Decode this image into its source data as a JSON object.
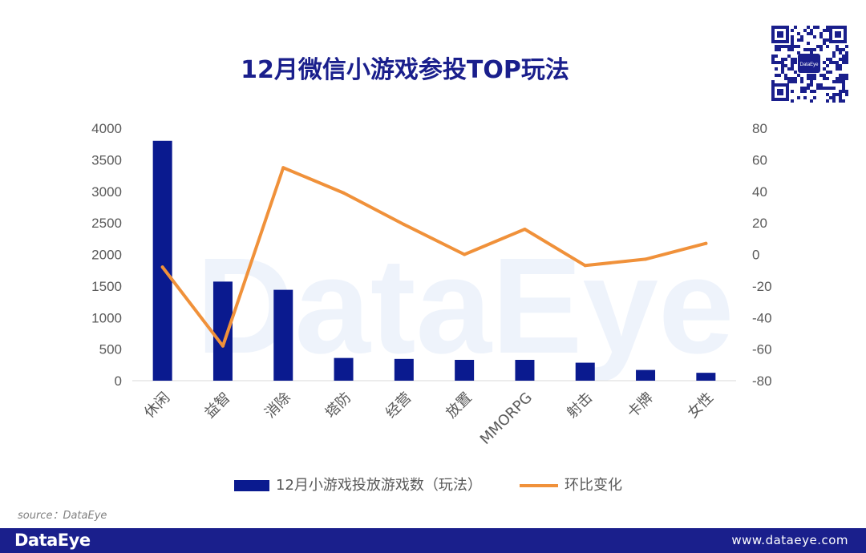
{
  "header": {
    "title": "12月微信小游戏参投TOP玩法"
  },
  "qr": {
    "center_label": "DataEye"
  },
  "watermark": "DataEye",
  "chart_data": {
    "type": "bar",
    "categories": [
      "休闲",
      "益智",
      "消除",
      "塔防",
      "经营",
      "放置",
      "MMORPG",
      "射击",
      "卡牌",
      "女性"
    ],
    "series": [
      {
        "name": "12月小游戏投放游戏数（玩法）",
        "type": "bar",
        "axis": "left",
        "color": "#0a1a8f",
        "values": [
          3800,
          1570,
          1440,
          360,
          345,
          330,
          330,
          285,
          170,
          125
        ]
      },
      {
        "name": "环比变化",
        "type": "line",
        "axis": "right",
        "color": "#f0913a",
        "values": [
          -8,
          -58,
          55,
          39,
          19,
          0,
          16,
          -7,
          -3,
          7
        ]
      }
    ],
    "y_left": {
      "min": 0,
      "max": 4000,
      "ticks": [
        0,
        500,
        1000,
        1500,
        2000,
        2500,
        3000,
        3500,
        4000
      ]
    },
    "y_right": {
      "min": -80,
      "max": 80,
      "ticks": [
        -80,
        -60,
        -40,
        -20,
        0,
        20,
        40,
        60,
        80
      ]
    },
    "legend_position": "bottom",
    "grid": false
  },
  "source_text": "source：DataEye",
  "footer": {
    "brand": "DataEye",
    "url": "www.dataeye.com"
  },
  "colors": {
    "brand": "#1a1f8c",
    "bar": "#0a1a8f",
    "line": "#f0913a",
    "axis_text": "#595959"
  }
}
